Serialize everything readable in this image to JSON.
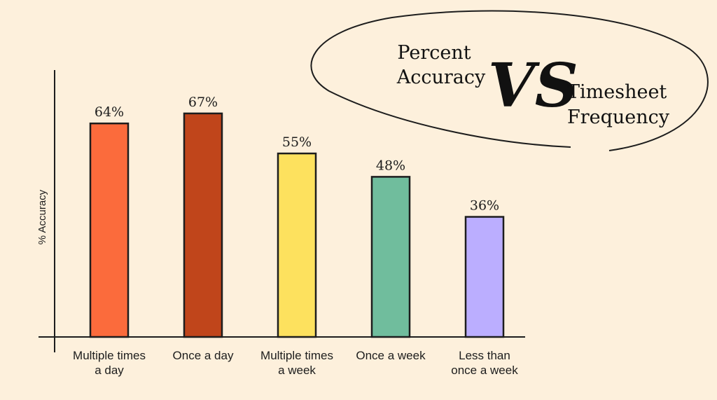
{
  "chart_data": {
    "type": "bar",
    "title_left": [
      "Percent",
      "Accuracy"
    ],
    "title_vs": "VS",
    "title_right": [
      "Timesheet",
      "Frequency"
    ],
    "ylabel": "% Accuracy",
    "xlabel": "",
    "ylim": [
      0,
      80
    ],
    "categories": [
      [
        "Multiple times",
        "a day"
      ],
      [
        "Once a day"
      ],
      [
        "Multiple times",
        "a week"
      ],
      [
        "Once a week"
      ],
      [
        "Less than",
        "once a week"
      ]
    ],
    "values": [
      64,
      67,
      55,
      48,
      36
    ],
    "value_labels": [
      "64%",
      "67%",
      "55%",
      "48%",
      "36%"
    ],
    "colors": [
      "#fb6b3c",
      "#c0451b",
      "#fde15e",
      "#70bd9d",
      "#bbaeff"
    ],
    "grid": false,
    "legend": "none"
  }
}
